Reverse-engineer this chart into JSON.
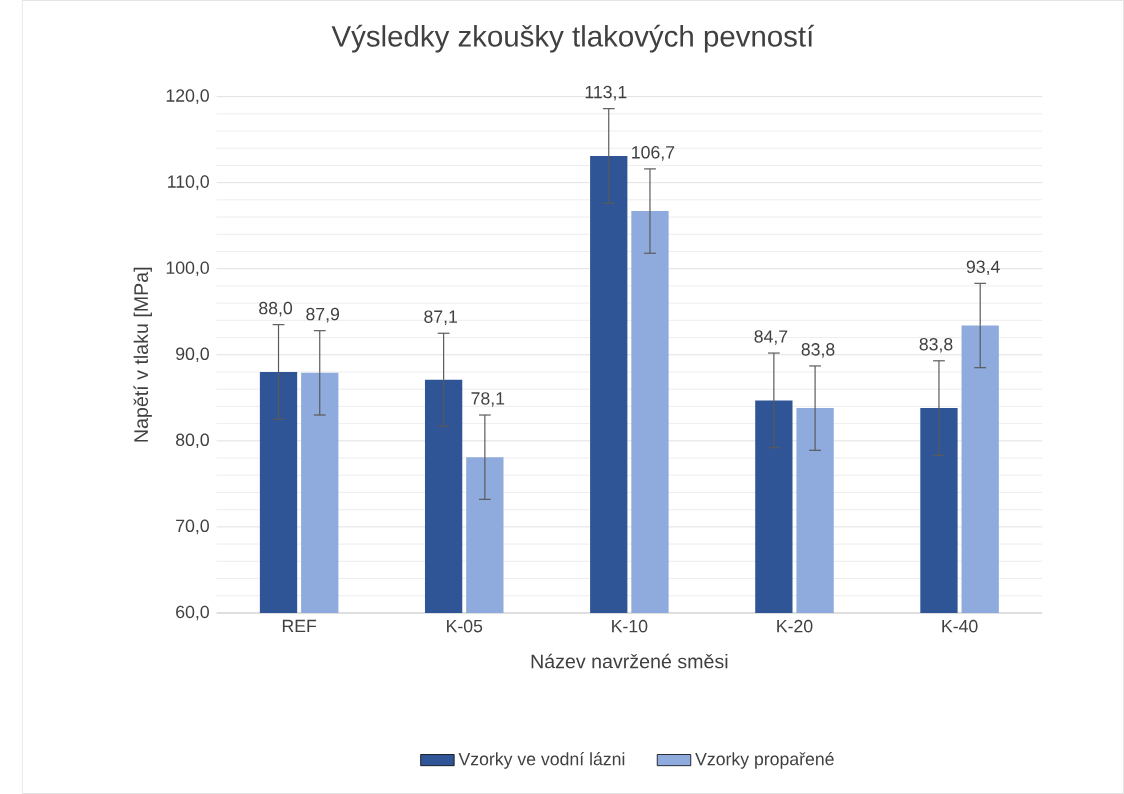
{
  "chart_data": {
    "type": "bar",
    "title": "Výsledky zkoušky tlakových pevností",
    "xlabel": "Název navržené směsi",
    "ylabel": "Napětí v tlaku [MPa]",
    "categories": [
      "REF",
      "K-05",
      "K-10",
      "K-20",
      "K-40"
    ],
    "series": [
      {
        "name": "Vzorky ve vodní lázni",
        "color": "#2f5597",
        "values": [
          88.0,
          87.1,
          113.1,
          84.7,
          83.8
        ],
        "value_labels": [
          "88,0",
          "87,1",
          "113,1",
          "84,7",
          "83,8"
        ],
        "errors": [
          5.5,
          5.4,
          5.5,
          5.5,
          5.5
        ]
      },
      {
        "name": "Vzorky propařené",
        "color": "#8faadc",
        "values": [
          87.9,
          78.1,
          106.7,
          83.8,
          93.4
        ],
        "value_labels": [
          "87,9",
          "78,1",
          "106,7",
          "83,8",
          "93,4"
        ],
        "errors": [
          4.9,
          4.9,
          4.9,
          4.9,
          4.9
        ]
      }
    ],
    "ylim": [
      60,
      120
    ],
    "yticks": [
      {
        "value": 60,
        "label": "60,0"
      },
      {
        "value": 70,
        "label": "70,0"
      },
      {
        "value": 80,
        "label": "80,0"
      },
      {
        "value": 90,
        "label": "90,0"
      },
      {
        "value": 100,
        "label": "100,0"
      },
      {
        "value": 110,
        "label": "110,0"
      },
      {
        "value": 120,
        "label": "120,0"
      }
    ],
    "grid": "y",
    "legend": "bottom"
  }
}
